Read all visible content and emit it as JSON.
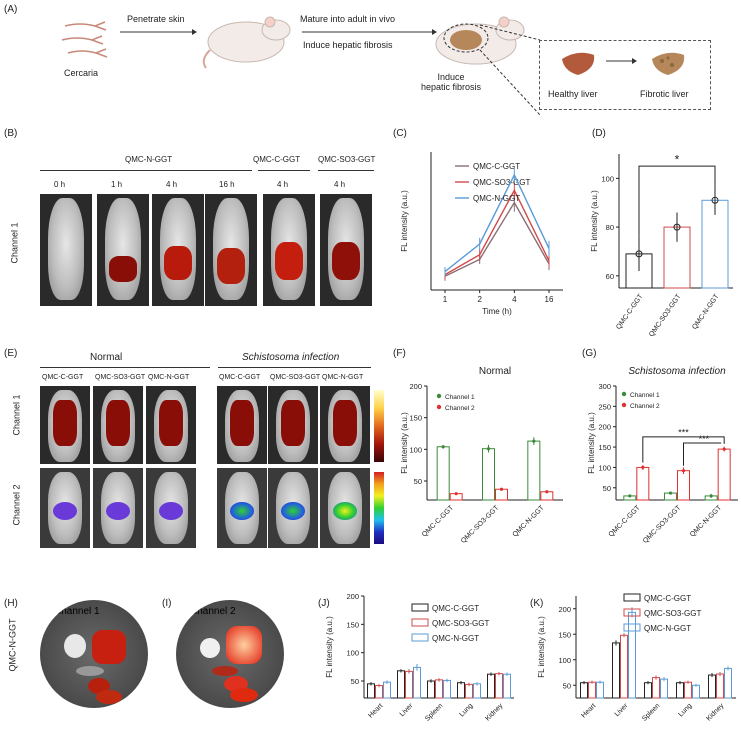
{
  "panels": {
    "A": "(A)",
    "B": "(B)",
    "C": "(C)",
    "D": "(D)",
    "E": "(E)",
    "F": "(F)",
    "G": "(G)",
    "H": "(H)",
    "I": "(I)",
    "J": "(J)",
    "K": "(K)"
  },
  "schematic": {
    "cercaria": "Cercaria",
    "step1": "Penetrate skin",
    "step2": "Mature into adult in vivo",
    "step3": "Induce hepatic fibrosis",
    "induce_label_1": "Induce",
    "induce_label_2": "hepatic fibrosis",
    "healthy": "Healthy liver",
    "fibrotic": "Fibrotic liver"
  },
  "panel_b": {
    "group_n": "QMC-N-GGT",
    "group_c": "QMC-C-GGT",
    "group_so3": "QMC-SO3-GGT",
    "times": [
      "0 h",
      "1 h",
      "4 h",
      "16 h",
      "4 h",
      "4 h"
    ],
    "channel": "Channel 1"
  },
  "panel_e": {
    "normal": "Normal",
    "infection": "Schistosoma infection",
    "probes": [
      "QMC-C-GGT",
      "QMC-SO3-GGT",
      "QMC-N-GGT",
      "QMC-C-GGT",
      "QMC-SO3-GGT",
      "QMC-N-GGT"
    ],
    "channel1": "Channel 1",
    "channel2": "Channel 2"
  },
  "panel_h": {
    "side": "QMC-N-GGT",
    "ch1": "Channel 1",
    "ch2": "Channel 2"
  },
  "colors": {
    "c": "#8a6f75",
    "so3": "#d24b4b",
    "n": "#5b9bd5",
    "green": "#3a8a3a",
    "red": "#e03030",
    "black": "#222222"
  },
  "chart_data": [
    {
      "id": "C",
      "type": "line",
      "x": [
        "1",
        "2",
        "4",
        "16"
      ],
      "xlabel": "Time (h)",
      "ylabel": "FL intensity (a.u.)",
      "series": [
        {
          "name": "QMC-C-GGT",
          "values": [
            24,
            35,
            72,
            32
          ],
          "err": [
            3,
            3,
            6,
            4
          ]
        },
        {
          "name": "QMC-SO3-GGT",
          "values": [
            25,
            38,
            80,
            34
          ],
          "err": [
            3,
            4,
            6,
            4
          ]
        },
        {
          "name": "QMC-N-GGT",
          "values": [
            27,
            45,
            90,
            42
          ],
          "err": [
            3,
            4,
            5,
            5
          ]
        }
      ]
    },
    {
      "id": "D",
      "type": "bar",
      "categories": [
        "QMC-C-GGT",
        "QMC-SO3-GGT",
        "QMC-N-GGT"
      ],
      "values": [
        69,
        80,
        91
      ],
      "err": [
        7,
        6,
        6
      ],
      "ylabel": "FL intensity (a.u.)",
      "yticks": [
        60,
        80,
        100
      ],
      "ylim": [
        55,
        110
      ],
      "sig": "*"
    },
    {
      "id": "F",
      "type": "bar",
      "title": "Normal",
      "categories": [
        "QMC-C-GGT",
        "QMC-SO3-GGT",
        "QMC-N-GGT"
      ],
      "series": [
        {
          "name": "Channel 1",
          "values": [
            104,
            101,
            113
          ],
          "err": [
            3,
            6,
            6
          ]
        },
        {
          "name": "Channel 2",
          "values": [
            30,
            37,
            33
          ],
          "err": [
            2,
            2,
            2
          ]
        }
      ],
      "ylabel": "FL intensity (a.u.)",
      "yticks": [
        50,
        100,
        150,
        200
      ],
      "ylim": [
        20,
        200
      ]
    },
    {
      "id": "G",
      "type": "bar",
      "title": "Schistosoma infection",
      "categories": [
        "QMC-C-GGT",
        "QMC-SO3-GGT",
        "QMC-N-GGT"
      ],
      "series": [
        {
          "name": "Channel 1",
          "values": [
            30,
            37,
            30
          ],
          "err": [
            3,
            2,
            5
          ]
        },
        {
          "name": "Channel 2",
          "values": [
            100,
            92,
            145
          ],
          "err": [
            6,
            8,
            6
          ]
        }
      ],
      "ylabel": "FL intensity (a.u.)",
      "yticks": [
        50,
        100,
        150,
        200,
        250,
        300
      ],
      "ylim": [
        20,
        300
      ],
      "sig": [
        "***",
        "***"
      ]
    },
    {
      "id": "J",
      "type": "bar",
      "categories": [
        "Heart",
        "Liver",
        "Spleen",
        "Lung",
        "Kidney"
      ],
      "series": [
        {
          "name": "QMC-C-GGT",
          "values": [
            45,
            68,
            50,
            47,
            62
          ],
          "err": [
            3,
            3,
            3,
            3,
            3
          ]
        },
        {
          "name": "QMC-SO3-GGT",
          "values": [
            42,
            67,
            52,
            44,
            63
          ],
          "err": [
            3,
            4,
            3,
            3,
            3
          ]
        },
        {
          "name": "QMC-N-GGT",
          "values": [
            48,
            74,
            51,
            45,
            62
          ],
          "err": [
            3,
            6,
            3,
            3,
            3
          ]
        }
      ],
      "ylabel": "FL intensity (a.u.)",
      "yticks": [
        50,
        100,
        150,
        200
      ],
      "ylim": [
        20,
        200
      ]
    },
    {
      "id": "K",
      "type": "bar",
      "categories": [
        "Heart",
        "Liver",
        "Spleen",
        "Lung",
        "Kidney"
      ],
      "series": [
        {
          "name": "QMC-C-GGT",
          "values": [
            55,
            133,
            55,
            55,
            70
          ],
          "err": [
            3,
            5,
            3,
            3,
            4
          ]
        },
        {
          "name": "QMC-SO3-GGT",
          "values": [
            56,
            148,
            65,
            56,
            72
          ],
          "err": [
            3,
            4,
            4,
            3,
            4
          ]
        },
        {
          "name": "QMC-N-GGT",
          "values": [
            56,
            193,
            62,
            50,
            83
          ],
          "err": [
            3,
            10,
            4,
            3,
            4
          ]
        }
      ],
      "ylabel": "FL intensity (a.u.)",
      "yticks": [
        50,
        100,
        150,
        200
      ],
      "ylim": [
        25,
        225
      ]
    }
  ]
}
